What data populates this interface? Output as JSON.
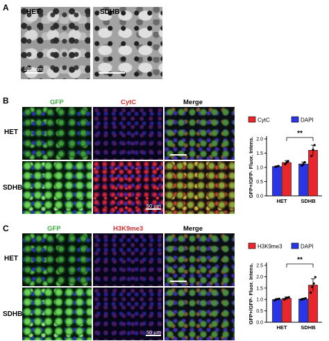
{
  "panel_a": {
    "letter": "A",
    "images": [
      {
        "label": "HET",
        "scale_text": "1000nm"
      },
      {
        "label": "SDHB",
        "scale_text": ""
      }
    ]
  },
  "panel_b": {
    "letter": "B",
    "columns": [
      "GFP",
      "CytC",
      "Merge"
    ],
    "column_colors": [
      "#3fae3f",
      "#d42d2d",
      "#000000"
    ],
    "rows": [
      "HET",
      "SDHB"
    ],
    "scale_text": "50 μm"
  },
  "panel_c": {
    "letter": "C",
    "columns": [
      "GFP",
      "H3K9me3",
      "Merge"
    ],
    "column_colors": [
      "#3fae3f",
      "#d42d2d",
      "#000000"
    ],
    "rows": [
      "HET",
      "SDHB"
    ],
    "scale_text": "50 μm"
  },
  "chart_data": [
    {
      "type": "bar",
      "ylabel": "GFP+/GFP- Fluor. Intens.",
      "categories": [
        "HET",
        "SDHB"
      ],
      "series": [
        {
          "name": "CytC",
          "color": "#e8262b",
          "values": [
            1.17,
            1.6
          ],
          "errors": [
            0.07,
            0.18
          ],
          "points": [
            [
              1.11,
              1.18,
              1.22
            ],
            [
              1.4,
              1.62,
              1.78
            ]
          ]
        },
        {
          "name": "DAPI",
          "color": "#2a35e8",
          "values": [
            1.03,
            1.12
          ],
          "errors": [
            0.02,
            0.07
          ],
          "points": [
            [
              1.02,
              1.03,
              1.05
            ],
            [
              1.06,
              1.12,
              1.18
            ]
          ]
        }
      ],
      "ylim": [
        0.0,
        2.0
      ],
      "yticks": [
        "0.0",
        "0.5",
        "1.0",
        "1.5",
        "2.0"
      ],
      "significance": "**",
      "legend_position": "top"
    },
    {
      "type": "bar",
      "ylabel": "GFP+/GFP- Fluor. Intens.",
      "categories": [
        "HET",
        "SDHB"
      ],
      "series": [
        {
          "name": "H3K9me3",
          "color": "#e8262b",
          "values": [
            1.05,
            1.63
          ],
          "errors": [
            0.06,
            0.28
          ],
          "points": [
            [
              1.0,
              1.05,
              1.08,
              1.1
            ],
            [
              1.3,
              1.55,
              1.7,
              1.98
            ]
          ]
        },
        {
          "name": "DAPI",
          "color": "#2a35e8",
          "values": [
            1.0,
            1.02
          ],
          "errors": [
            0.04,
            0.03
          ],
          "points": [
            [
              0.96,
              1.0,
              1.02,
              1.03
            ],
            [
              0.99,
              1.01,
              1.03,
              1.05
            ]
          ]
        }
      ],
      "ylim": [
        0.0,
        2.5
      ],
      "yticks": [
        "0.0",
        "0.5",
        "1.0",
        "1.5",
        "2.0",
        "2.5"
      ],
      "significance": "**",
      "legend_position": "top"
    }
  ]
}
